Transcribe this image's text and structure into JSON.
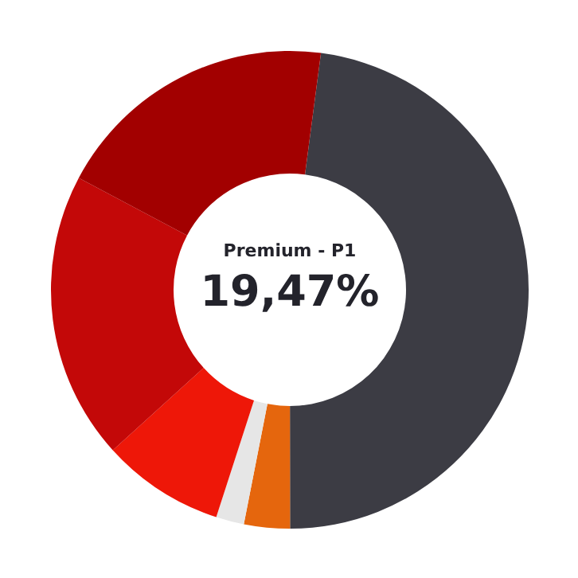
{
  "chart_data": {
    "type": "donut",
    "categories": [
      null,
      null,
      null,
      null,
      null,
      null
    ],
    "values": [
      47.9,
      3.1,
      1.9,
      8.3,
      19.47,
      19.33
    ],
    "colors": [
      "#3c3c44",
      "#e5660d",
      "#e6e6e6",
      "#ee1708",
      "#c30808",
      "#a20000"
    ],
    "annotations": [
      "Premium - P1",
      "19,47%"
    ]
  }
}
